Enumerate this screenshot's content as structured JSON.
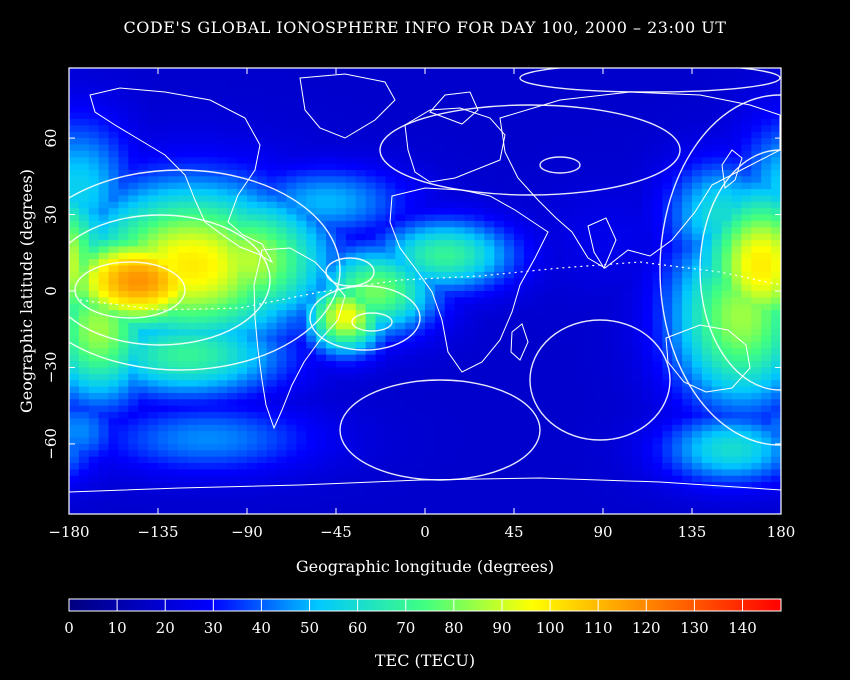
{
  "title": "CODE'S GLOBAL IONOSPHERE INFO FOR DAY 100, 2000 – 23:00 UT",
  "map": {
    "xlabel": "Geographic longitude (degrees)",
    "ylabel": "Geographic latitude (degrees)",
    "x_ticks": [
      -180,
      -135,
      -90,
      -45,
      0,
      45,
      90,
      135,
      180
    ],
    "y_ticks": [
      -60,
      -30,
      0,
      30,
      60
    ],
    "xlim": [
      -180,
      180
    ],
    "ylim": [
      -87.5,
      87.5
    ],
    "blobs": [
      {
        "lon": -145,
        "lat": 4,
        "value": 118,
        "sx": 30,
        "sy": 14
      },
      {
        "lon": -118,
        "lat": 10,
        "value": 100,
        "sx": 40,
        "sy": 22
      },
      {
        "lon": -90,
        "lat": 12,
        "value": 88,
        "sx": 30,
        "sy": 18
      },
      {
        "lon": -40,
        "lat": -10,
        "value": 96,
        "sx": 14,
        "sy": 10
      },
      {
        "lon": -25,
        "lat": 0,
        "value": 80,
        "sx": 22,
        "sy": 12
      },
      {
        "lon": 10,
        "lat": 14,
        "value": 70,
        "sx": 25,
        "sy": 10
      },
      {
        "lon": -165,
        "lat": -15,
        "value": 85,
        "sx": 20,
        "sy": 20
      },
      {
        "lon": -120,
        "lat": -25,
        "value": 70,
        "sx": 35,
        "sy": 12
      },
      {
        "lon": -50,
        "lat": 35,
        "value": 50,
        "sx": 30,
        "sy": 10
      },
      {
        "lon": -175,
        "lat": 40,
        "value": 55,
        "sx": 20,
        "sy": 20
      },
      {
        "lon": 170,
        "lat": 10,
        "value": 100,
        "sx": 22,
        "sy": 22
      },
      {
        "lon": 160,
        "lat": -10,
        "value": 85,
        "sx": 25,
        "sy": 25
      },
      {
        "lon": 150,
        "lat": 30,
        "value": 60,
        "sx": 20,
        "sy": 15
      },
      {
        "lon": 155,
        "lat": -62,
        "value": 60,
        "sx": 25,
        "sy": 10
      },
      {
        "lon": -110,
        "lat": -58,
        "value": 45,
        "sx": 40,
        "sy": 10
      },
      {
        "lon": -175,
        "lat": -55,
        "value": 45,
        "sx": 15,
        "sy": 10
      },
      {
        "lon": 95,
        "lat": 20,
        "value": 25,
        "sx": 30,
        "sy": 15
      }
    ],
    "baseline_value": 18
  },
  "colorbar": {
    "label": "TEC (TECU)",
    "ticks": [
      0,
      10,
      20,
      30,
      40,
      50,
      60,
      70,
      80,
      90,
      100,
      110,
      120,
      130,
      140
    ],
    "min": 0,
    "max": 148
  }
}
